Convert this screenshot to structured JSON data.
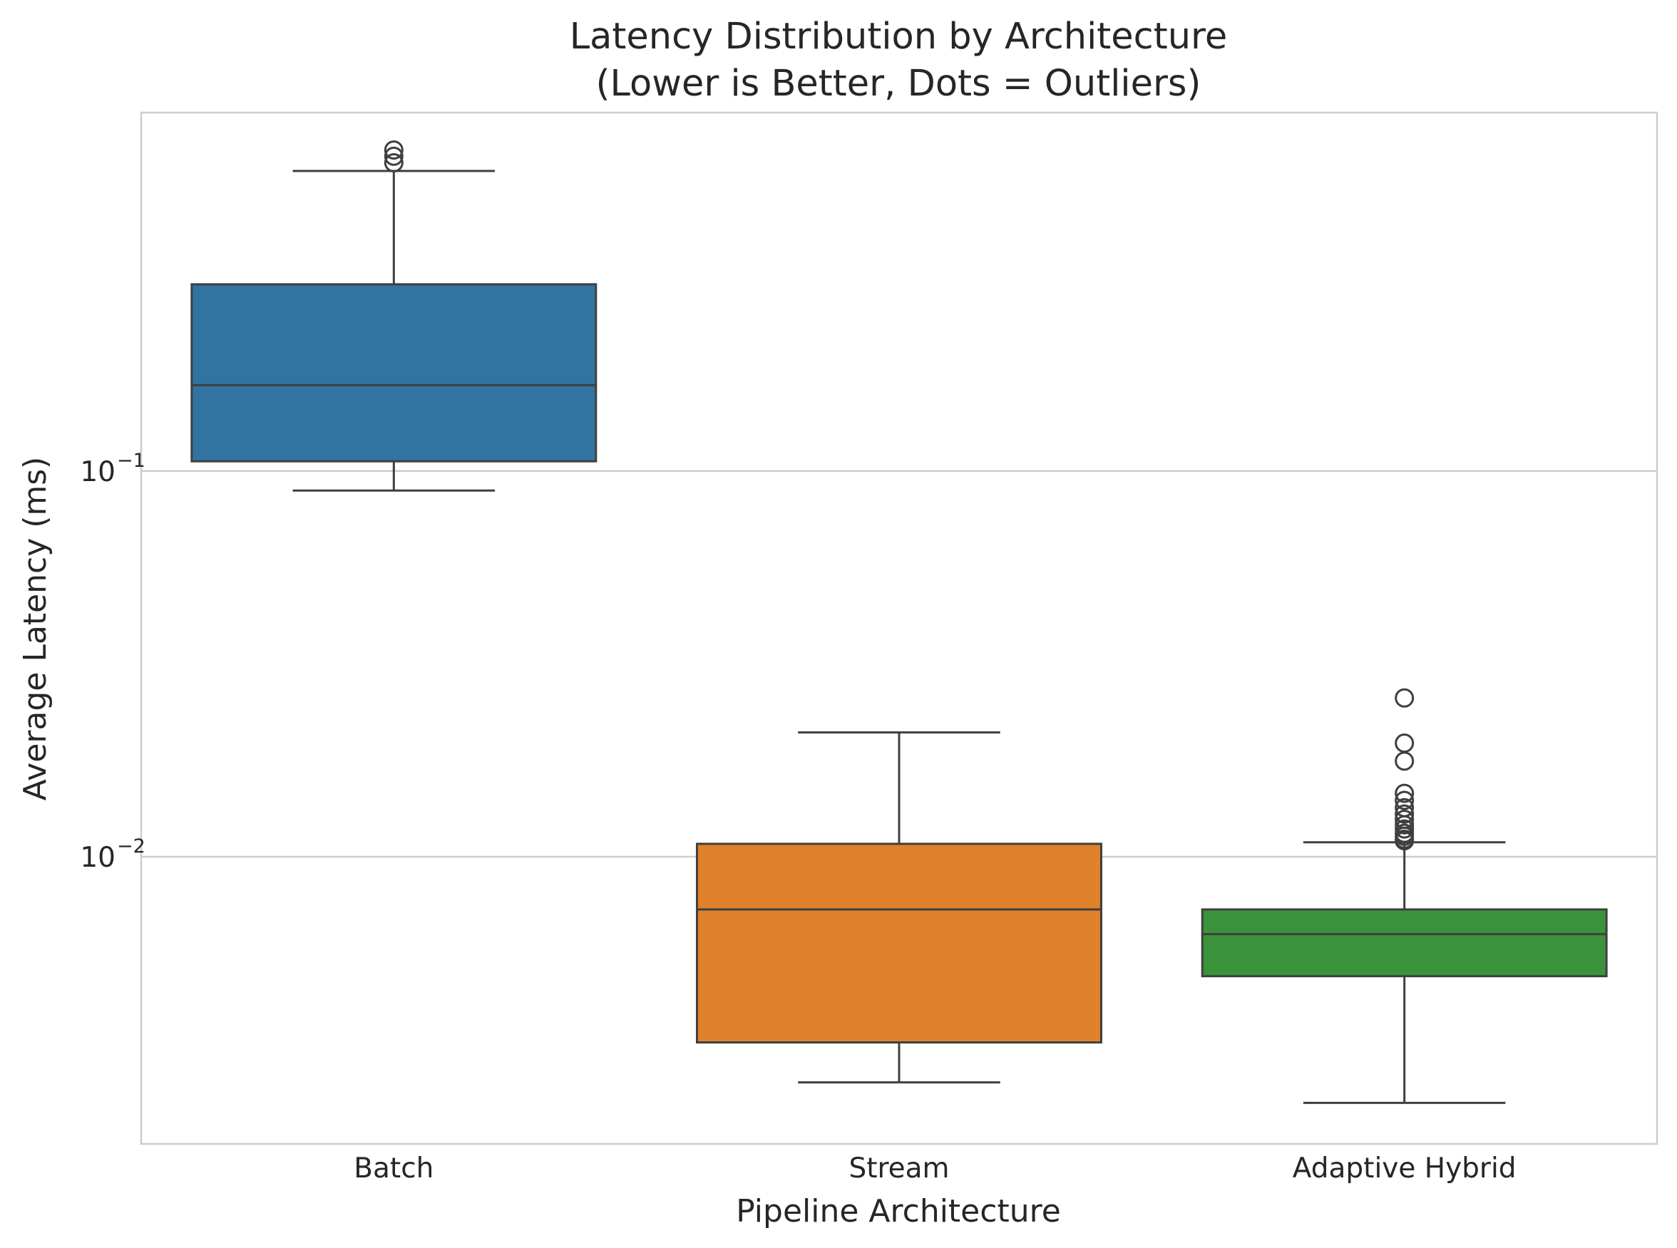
{
  "chart_data": {
    "type": "box",
    "title_line1": "Latency Distribution by Architecture",
    "title_line2": "(Lower is Better, Dots = Outliers)",
    "xlabel": "Pipeline Architecture",
    "ylabel": "Average Latency (ms)",
    "yscale": "log",
    "ylim": [
      0.0018,
      0.85
    ],
    "grid": "horizontal",
    "yticks": [
      {
        "value": 0.1,
        "base": "10",
        "exp": "−1"
      },
      {
        "value": 0.01,
        "base": "10",
        "exp": "−2"
      }
    ],
    "categories": [
      "Batch",
      "Stream",
      "Adaptive Hybrid"
    ],
    "boxes": [
      {
        "name": "Batch",
        "color": "#3274a1",
        "whisker_low": 0.089,
        "q1": 0.106,
        "median": 0.167,
        "q3": 0.305,
        "whisker_high": 0.6,
        "outliers": [
          0.68,
          0.655,
          0.63
        ]
      },
      {
        "name": "Stream",
        "color": "#e1812c",
        "whisker_low": 0.0026,
        "q1": 0.0033,
        "median": 0.0073,
        "q3": 0.0108,
        "whisker_high": 0.021,
        "outliers": []
      },
      {
        "name": "Adaptive Hybrid",
        "color": "#3a923a",
        "whisker_low": 0.0023,
        "q1": 0.0049,
        "median": 0.0063,
        "q3": 0.0073,
        "whisker_high": 0.0109,
        "outliers": [
          0.0258,
          0.0197,
          0.0177,
          0.0146,
          0.014,
          0.0134,
          0.0129,
          0.0125,
          0.0121,
          0.0118,
          0.0115,
          0.0113,
          0.0111,
          0.011
        ]
      }
    ]
  }
}
